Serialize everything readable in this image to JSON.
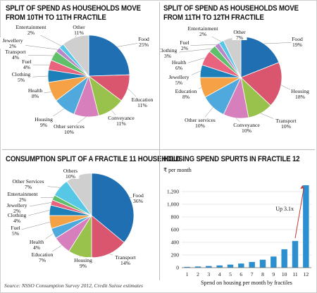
{
  "chart_data": [
    {
      "type": "pie",
      "title_lines": [
        "SPLIT OF SPEND AS HOUSEHOLDS MOVE",
        "FROM 10TH TO 11TH FRACTILE"
      ],
      "slices": [
        {
          "label": "Food",
          "display": "25%",
          "value": 25,
          "color": "#1f6fb2"
        },
        {
          "label": "Education",
          "display": "11%",
          "value": 11,
          "color": "#d9566e"
        },
        {
          "label": "Conveyance",
          "display": "11%",
          "value": 11,
          "color": "#99c24d"
        },
        {
          "label": "Other services",
          "display": "10%",
          "value": 10,
          "color": "#d77fbd"
        },
        {
          "label": "Housing",
          "display": "9%",
          "value": 9,
          "color": "#4fa9dc"
        },
        {
          "label": "Health",
          "display": "8%",
          "value": 8,
          "color": "#f4a245"
        },
        {
          "label": "Clothing",
          "display": "5%",
          "value": 5,
          "color": "#1d80b8"
        },
        {
          "label": "Fuel",
          "display": "4%",
          "value": 4,
          "color": "#e9637e"
        },
        {
          "label": "Transport",
          "display": "4%",
          "value": 4,
          "color": "#5fbf6b"
        },
        {
          "label": "Jewellery",
          "display": "2%",
          "value": 2,
          "color": "#b987c9"
        },
        {
          "label": "Entertainment",
          "display": "2%",
          "value": 2,
          "color": "#57c7e6"
        },
        {
          "label": "Other",
          "display": "11%",
          "value": 11,
          "color": "#cfcfcf"
        }
      ]
    },
    {
      "type": "pie",
      "title_lines": [
        "SPLIT OF SPEND AS HOUSEHOLDS MOVE",
        "FROM 11TH TO 12TH FRACTILE"
      ],
      "slices": [
        {
          "label": "Food",
          "display": "19%",
          "value": 19,
          "color": "#1f6fb2"
        },
        {
          "label": "Housing",
          "display": "18%",
          "value": 18,
          "color": "#d9566e"
        },
        {
          "label": "Transport",
          "display": "10%",
          "value": 10,
          "color": "#99c24d"
        },
        {
          "label": "Conveyance",
          "display": "10%",
          "value": 10,
          "color": "#d77fbd"
        },
        {
          "label": "Other services",
          "display": "10%",
          "value": 10,
          "color": "#4fa9dc"
        },
        {
          "label": "Education",
          "display": "8%",
          "value": 8,
          "color": "#f4a245"
        },
        {
          "label": "Jewellery",
          "display": "5%",
          "value": 5,
          "color": "#1d80b8"
        },
        {
          "label": "Health",
          "display": "6%",
          "value": 6,
          "color": "#e9637e"
        },
        {
          "label": "Clothing",
          "display": "3%",
          "value": 3,
          "color": "#5fbf6b"
        },
        {
          "label": "Fuel",
          "display": "2%",
          "value": 2,
          "color": "#b987c9"
        },
        {
          "label": "Entertainment",
          "display": "2%",
          "value": 2,
          "color": "#57c7e6"
        },
        {
          "label": "Other",
          "display": "7%",
          "value": 7,
          "color": "#cfcfcf"
        }
      ]
    },
    {
      "type": "pie",
      "title_lines": [
        "CONSUMPTION SPLIT OF A FRACTILE 11 HOUSEHOLD"
      ],
      "slices": [
        {
          "label": "Food",
          "display": "36%",
          "value": 36,
          "color": "#1f6fb2"
        },
        {
          "label": "Transport",
          "display": "14%",
          "value": 14,
          "color": "#d9566e"
        },
        {
          "label": "Housing",
          "display": "9%",
          "value": 9,
          "color": "#99c24d"
        },
        {
          "label": "Education",
          "display": "7%",
          "value": 7,
          "color": "#d77fbd"
        },
        {
          "label": "Health",
          "display": "4%",
          "value": 4,
          "color": "#4fa9dc"
        },
        {
          "label": "Fuel",
          "display": "5%",
          "value": 5,
          "color": "#f4a245"
        },
        {
          "label": "Clothing",
          "display": "4%",
          "value": 4,
          "color": "#1d80b8"
        },
        {
          "label": "Jewellery",
          "display": "2%",
          "value": 2,
          "color": "#e9637e"
        },
        {
          "label": "Entertainment",
          "display": "2%",
          "value": 2,
          "color": "#5fbf6b"
        },
        {
          "label": "Other Services",
          "display": "7%",
          "value": 7,
          "color": "#57c7e6"
        },
        {
          "label": "Others",
          "display": "10%",
          "value": 10,
          "color": "#cfcfcf"
        }
      ]
    },
    {
      "type": "bar",
      "title_lines": [
        "HOUSING SPEND SPURTS IN FRACTILE 12"
      ],
      "ylabel": "₹ per month",
      "xlabel": "Spend on housing per month by fractiles",
      "categories": [
        "1",
        "2",
        "3",
        "4",
        "5",
        "6",
        "7",
        "8",
        "9",
        "10",
        "11",
        "12"
      ],
      "values": [
        12,
        18,
        26,
        35,
        48,
        65,
        90,
        125,
        175,
        290,
        420,
        1300
      ],
      "ylim": [
        0,
        1400
      ],
      "yticks": [
        "0",
        "200",
        "400",
        "600",
        "800",
        "1,000",
        "1,200"
      ],
      "grid": true,
      "bar_color": "#2b8fd0",
      "annotation": "Up 3.1x"
    }
  ],
  "source": "Source: NSSO Consumption Survey 2012, Credit Suisse estimates"
}
